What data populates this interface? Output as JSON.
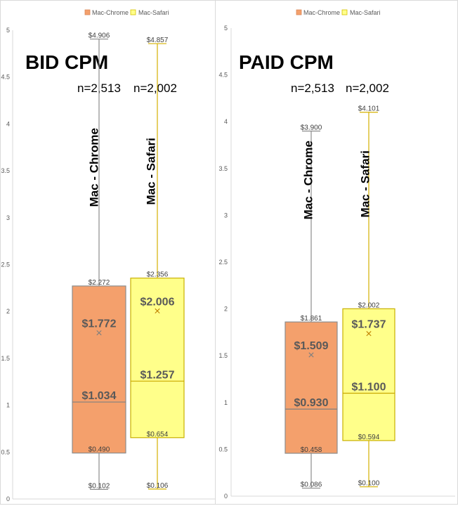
{
  "chart_data": [
    {
      "type": "box",
      "title": "BID CPM",
      "ylim": [
        0,
        5
      ],
      "yticks": [
        "0",
        "0.5",
        "1",
        "1.5",
        "2",
        "2.5",
        "3",
        "3.5",
        "4",
        "4.5",
        "5"
      ],
      "legend": [
        "Mac-Chrome",
        "Mac-Safari"
      ],
      "legend_position": "top",
      "grid": false,
      "series": [
        {
          "name": "Mac - Chrome",
          "count_label": "n=2,513",
          "color": "#F4A06C",
          "min": 0.102,
          "q1": 0.49,
          "median": 1.034,
          "mean": 1.772,
          "q3": 2.272,
          "max": 4.906,
          "labels": {
            "min": "$0.102",
            "q1": "$0.490",
            "median": "$1.034",
            "mean": "$1.772",
            "q3": "$2.272",
            "max": "$4.906"
          }
        },
        {
          "name": "Mac - Safari",
          "count_label": "n=2,002",
          "color": "#FFFF8A",
          "min": 0.106,
          "q1": 0.654,
          "median": 1.257,
          "mean": 2.006,
          "q3": 2.356,
          "max": 4.857,
          "labels": {
            "min": "$0.106",
            "q1": "$0.654",
            "median": "$1.257",
            "mean": "$2.006",
            "q3": "$2.356",
            "max": "$4.857"
          }
        }
      ]
    },
    {
      "type": "box",
      "title": "PAID CPM",
      "ylim": [
        0,
        5
      ],
      "yticks": [
        "0",
        "0.5",
        "1",
        "1.5",
        "2",
        "2.5",
        "3",
        "3.5",
        "4",
        "4.5",
        "5"
      ],
      "legend": [
        "Mac-Chrome",
        "Mac-Safari"
      ],
      "legend_position": "top",
      "grid": false,
      "series": [
        {
          "name": "Mac - Chrome",
          "count_label": "n=2,513",
          "color": "#F4A06C",
          "min": 0.086,
          "q1": 0.458,
          "median": 0.93,
          "mean": 1.509,
          "q3": 1.861,
          "max": 3.9,
          "labels": {
            "min": "$0.086",
            "q1": "$0.458",
            "median": "$0.930",
            "mean": "$1.509",
            "q3": "$1.861",
            "max": "$3.900"
          }
        },
        {
          "name": "Mac - Safari",
          "count_label": "n=2,002",
          "color": "#FFFF8A",
          "min": 0.1,
          "q1": 0.594,
          "median": 1.1,
          "mean": 1.737,
          "q3": 2.002,
          "max": 4.101,
          "labels": {
            "min": "$0.100",
            "q1": "$0.594",
            "median": "$1.100",
            "mean": "$1.737",
            "q3": "$2.002",
            "max": "$4.101"
          }
        }
      ]
    }
  ]
}
